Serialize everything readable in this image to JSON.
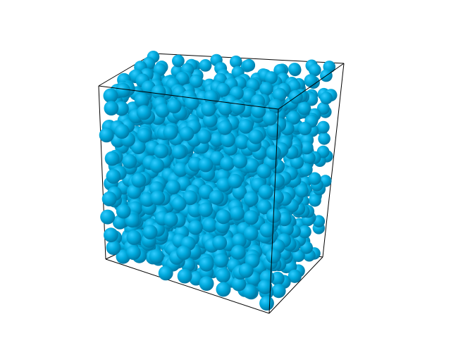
{
  "scene": {
    "background_color": "#ffffff",
    "particle_color": "#00aadd",
    "particle_highlight_color": "#33ccff",
    "particle_shadow_color": "#006f99",
    "box_edge_color": "#000000",
    "particle_shape": "sphere",
    "box_shape": "cube-wireframe"
  }
}
